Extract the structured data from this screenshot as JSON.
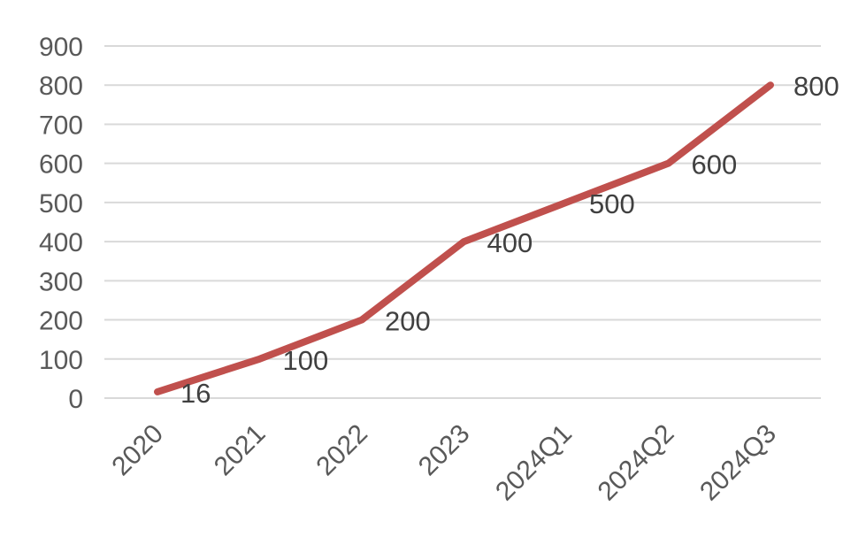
{
  "chart_data": {
    "type": "line",
    "categories": [
      "2020",
      "2021",
      "2022",
      "2023",
      "2024Q1",
      "2024Q2",
      "2024Q3"
    ],
    "values": [
      16,
      100,
      200,
      400,
      500,
      600,
      800
    ],
    "data_labels": [
      "16",
      "100",
      "200",
      "400",
      "500",
      "600",
      "800"
    ],
    "ylim": [
      0,
      900
    ],
    "y_ticks": [
      0,
      100,
      200,
      300,
      400,
      500,
      600,
      700,
      800,
      900
    ],
    "y_tick_labels": [
      "0",
      "100",
      "200",
      "300",
      "400",
      "500",
      "600",
      "700",
      "800",
      "900"
    ],
    "grid": true,
    "legend": "none",
    "line_color": "#c0504d"
  }
}
